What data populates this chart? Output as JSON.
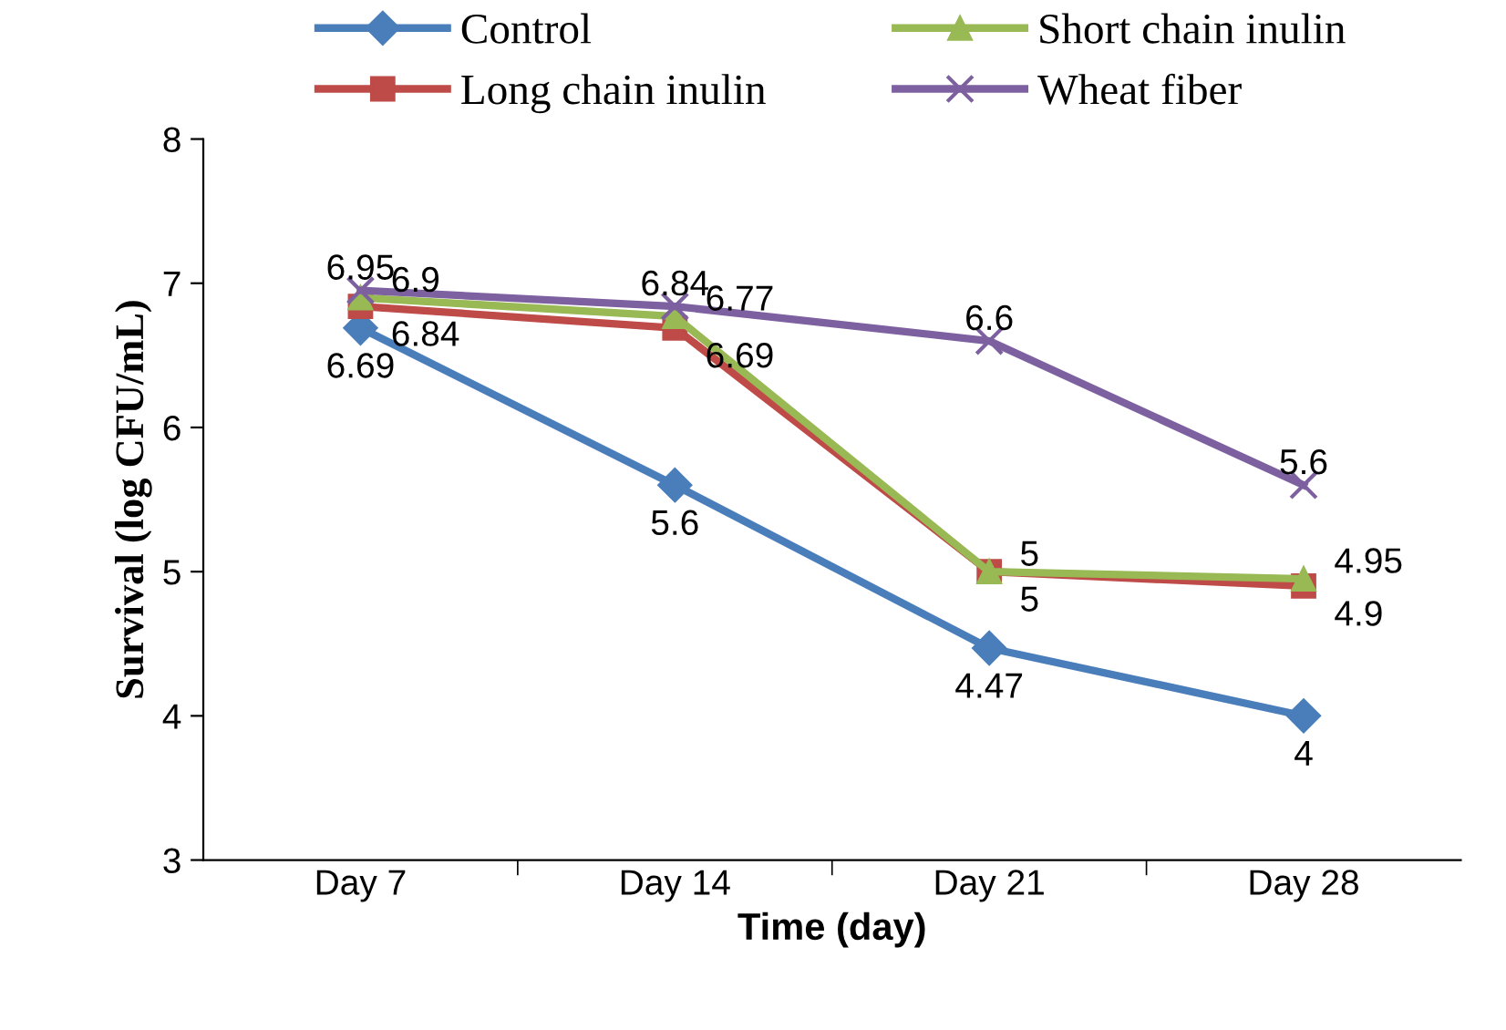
{
  "chart_data": {
    "type": "line",
    "xlabel": "Time (day)",
    "ylabel": "Survival (log CFU/mL)",
    "categories": [
      "Day 7",
      "Day 14",
      "Day 21",
      "Day 28"
    ],
    "series": [
      {
        "name": "Control",
        "color": "#4a7ebb",
        "marker": "diamond",
        "values": [
          6.69,
          5.6,
          4.47,
          4
        ]
      },
      {
        "name": "Long chain inulin",
        "color": "#be4b48",
        "marker": "square",
        "values": [
          6.84,
          6.69,
          5,
          4.9
        ]
      },
      {
        "name": "Short chain inulin",
        "color": "#98b954",
        "marker": "triangle",
        "values": [
          6.9,
          6.77,
          5,
          4.95
        ]
      },
      {
        "name": "Wheat fiber",
        "color": "#7d60a0",
        "marker": "cross",
        "values": [
          6.95,
          6.84,
          6.6,
          5.6
        ]
      }
    ],
    "ylim": [
      3,
      8
    ],
    "yticks": [
      3,
      4,
      5,
      6,
      7,
      8
    ],
    "grid": false,
    "legend": "top",
    "data_labels": true,
    "line_style": "solid"
  }
}
